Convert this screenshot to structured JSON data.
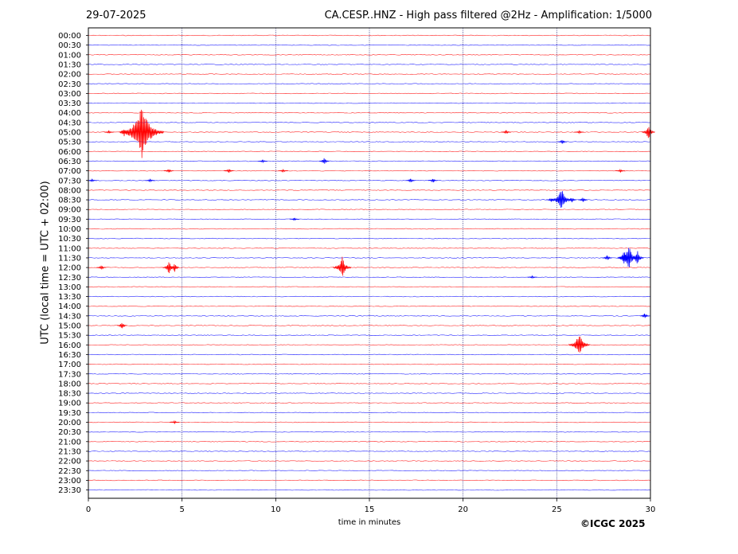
{
  "header": {
    "date": "29-07-2025",
    "title": "CA.CESP..HNZ - High pass filtered @2Hz - Amplification: 1/5000"
  },
  "footer": {
    "copyright": "©ICGC 2025"
  },
  "chart_data": {
    "type": "line",
    "xlabel": "time in minutes",
    "ylabel": "UTC (local time = UTC + 02:00)",
    "xlim": [
      0,
      30
    ],
    "x_ticks": [
      0,
      5,
      10,
      15,
      20,
      25,
      30
    ],
    "grid": "vertical dotted lines at 5-minute ticks",
    "colors": {
      "odd_trace": "#ff0000",
      "even_trace": "#0000ff"
    },
    "rows": [
      "00:00",
      "00:30",
      "01:00",
      "01:30",
      "02:00",
      "02:30",
      "03:00",
      "03:30",
      "04:00",
      "04:30",
      "05:00",
      "05:30",
      "06:00",
      "06:30",
      "07:00",
      "07:30",
      "08:00",
      "08:30",
      "09:00",
      "09:30",
      "10:00",
      "10:30",
      "11:00",
      "11:30",
      "12:00",
      "12:30",
      "13:00",
      "13:30",
      "14:00",
      "14:30",
      "15:00",
      "15:30",
      "16:00",
      "16:30",
      "17:00",
      "17:30",
      "18:00",
      "18:30",
      "19:00",
      "19:30",
      "20:00",
      "20:30",
      "21:00",
      "21:30",
      "22:00",
      "22:30",
      "23:00",
      "23:30"
    ],
    "events": [
      {
        "row": "05:00",
        "minute": 1.1,
        "amplitude": 2
      },
      {
        "row": "05:00",
        "minute": 1.9,
        "amplitude": 6
      },
      {
        "row": "05:00",
        "minute": 2.85,
        "amplitude": 34
      },
      {
        "row": "05:00",
        "minute": 22.3,
        "amplitude": 3
      },
      {
        "row": "05:00",
        "minute": 26.2,
        "amplitude": 2
      },
      {
        "row": "05:00",
        "minute": 29.9,
        "amplitude": 10
      },
      {
        "row": "05:30",
        "minute": 25.3,
        "amplitude": 3
      },
      {
        "row": "06:30",
        "minute": 9.3,
        "amplitude": 2
      },
      {
        "row": "06:30",
        "minute": 12.6,
        "amplitude": 5
      },
      {
        "row": "07:00",
        "minute": 4.3,
        "amplitude": 3
      },
      {
        "row": "07:00",
        "minute": 7.5,
        "amplitude": 3
      },
      {
        "row": "07:00",
        "minute": 10.4,
        "amplitude": 2
      },
      {
        "row": "07:00",
        "minute": 28.4,
        "amplitude": 2
      },
      {
        "row": "07:30",
        "minute": 0.2,
        "amplitude": 2
      },
      {
        "row": "07:30",
        "minute": 3.3,
        "amplitude": 2
      },
      {
        "row": "07:30",
        "minute": 17.2,
        "amplitude": 3
      },
      {
        "row": "07:30",
        "minute": 18.4,
        "amplitude": 3
      },
      {
        "row": "08:30",
        "minute": 24.7,
        "amplitude": 3
      },
      {
        "row": "08:30",
        "minute": 25.25,
        "amplitude": 16
      },
      {
        "row": "08:30",
        "minute": 25.8,
        "amplitude": 4
      },
      {
        "row": "08:30",
        "minute": 26.4,
        "amplitude": 4
      },
      {
        "row": "09:30",
        "minute": 11.0,
        "amplitude": 2
      },
      {
        "row": "11:30",
        "minute": 27.7,
        "amplitude": 4
      },
      {
        "row": "11:30",
        "minute": 28.6,
        "amplitude": 10
      },
      {
        "row": "11:30",
        "minute": 28.85,
        "amplitude": 16
      },
      {
        "row": "11:30",
        "minute": 29.3,
        "amplitude": 10
      },
      {
        "row": "12:00",
        "minute": 0.7,
        "amplitude": 3
      },
      {
        "row": "12:00",
        "minute": 4.3,
        "amplitude": 9
      },
      {
        "row": "12:00",
        "minute": 4.6,
        "amplitude": 7
      },
      {
        "row": "12:00",
        "minute": 13.55,
        "amplitude": 14
      },
      {
        "row": "12:30",
        "minute": 23.7,
        "amplitude": 2
      },
      {
        "row": "14:30",
        "minute": 29.7,
        "amplitude": 4
      },
      {
        "row": "15:00",
        "minute": 1.8,
        "amplitude": 5
      },
      {
        "row": "16:00",
        "minute": 26.2,
        "amplitude": 16
      },
      {
        "row": "20:00",
        "minute": 4.6,
        "amplitude": 2
      }
    ]
  }
}
